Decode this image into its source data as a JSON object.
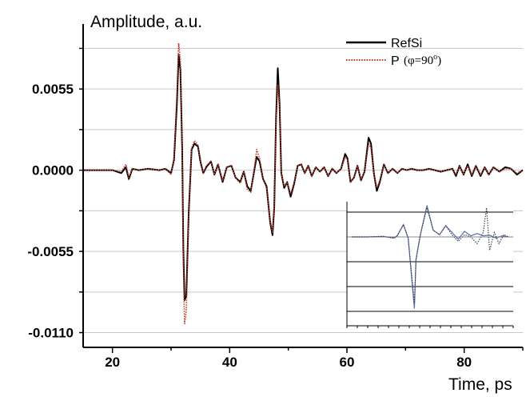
{
  "chart_data": {
    "type": "line",
    "title": "",
    "ylabel": "Amplitude, a.u.",
    "xlabel": "Time, ps",
    "xlim": [
      15,
      90
    ],
    "ylim": [
      -0.012,
      0.0099
    ],
    "x_ticks": [
      20,
      40,
      60,
      80
    ],
    "x_tick_labels": [
      "20",
      "40",
      "60",
      "80"
    ],
    "y_ticks": [
      -0.011,
      -0.0055,
      0.0,
      0.0055
    ],
    "y_tick_labels": [
      "-0.0110",
      "-0.0055",
      "0.0000",
      "0.0055"
    ],
    "grid": true,
    "legend_position": "top-right",
    "series": [
      {
        "name": "RefSi",
        "color": "#000000",
        "style": "solid",
        "points": [
          [
            15,
            0
          ],
          [
            18,
            0
          ],
          [
            20,
            0
          ],
          [
            21.5,
            -0.0002
          ],
          [
            22.3,
            0.0002
          ],
          [
            22.8,
            -0.0006
          ],
          [
            23.4,
            0.0001
          ],
          [
            24.5,
            0
          ],
          [
            26,
            0.0001
          ],
          [
            28,
            0
          ],
          [
            29,
            0.0001
          ],
          [
            30,
            -0.0002
          ],
          [
            30.5,
            0.0007
          ],
          [
            31,
            0.0045
          ],
          [
            31.3,
            0.0078
          ],
          [
            31.6,
            0.0068
          ],
          [
            31.9,
            0.0015
          ],
          [
            32.1,
            -0.0055
          ],
          [
            32.3,
            -0.0088
          ],
          [
            32.6,
            -0.0085
          ],
          [
            33,
            -0.003
          ],
          [
            33.5,
            0.0014
          ],
          [
            34,
            0.0018
          ],
          [
            34.6,
            0.0016
          ],
          [
            35,
            0.0006
          ],
          [
            35.5,
            -0.0002
          ],
          [
            36,
            0.0002
          ],
          [
            36.8,
            0.0006
          ],
          [
            37.4,
            -0.0003
          ],
          [
            38,
            0.0004
          ],
          [
            38.8,
            -0.0008
          ],
          [
            39.5,
            0.0002
          ],
          [
            40.3,
            0.0003
          ],
          [
            41,
            -0.0005
          ],
          [
            41.8,
            -0.0008
          ],
          [
            42.4,
            -0.0001
          ],
          [
            43,
            -0.0011
          ],
          [
            43.6,
            -0.0014
          ],
          [
            44.2,
            0.0
          ],
          [
            44.6,
            0.0009
          ],
          [
            45.1,
            0.0006
          ],
          [
            45.7,
            -0.0006
          ],
          [
            46.3,
            -0.0011
          ],
          [
            46.9,
            -0.0035
          ],
          [
            47.3,
            -0.0044
          ],
          [
            47.6,
            -0.0025
          ],
          [
            47.9,
            0.0035
          ],
          [
            48.2,
            0.0069
          ],
          [
            48.5,
            0.0045
          ],
          [
            48.8,
            -0.0002
          ],
          [
            49.3,
            -0.0012
          ],
          [
            49.8,
            -0.0008
          ],
          [
            50.4,
            -0.0018
          ],
          [
            51,
            -0.0009
          ],
          [
            51.6,
            0.0003
          ],
          [
            52.2,
            0.0004
          ],
          [
            52.8,
            -0.0002
          ],
          [
            53.4,
            0.0003
          ],
          [
            54,
            -0.0004
          ],
          [
            54.7,
            0.0002
          ],
          [
            55.4,
            -0.0001
          ],
          [
            56.1,
            0.0002
          ],
          [
            56.8,
            -0.0004
          ],
          [
            57.5,
            0.0001
          ],
          [
            58.2,
            -0.0002
          ],
          [
            59,
            0.0001
          ],
          [
            59.7,
            0.0011
          ],
          [
            60.1,
            0.0008
          ],
          [
            60.6,
            -0.0008
          ],
          [
            61.2,
            -0.0005
          ],
          [
            61.8,
            0.0003
          ],
          [
            62.4,
            -0.0007
          ],
          [
            63,
            -0.0001
          ],
          [
            63.7,
            0.0022
          ],
          [
            64.1,
            0.0018
          ],
          [
            64.6,
            -0.0002
          ],
          [
            65.1,
            -0.0014
          ],
          [
            65.6,
            -0.0008
          ],
          [
            66.3,
            0.0004
          ],
          [
            67,
            -0.0002
          ],
          [
            67.8,
            0.0001
          ],
          [
            68.6,
            -0.0002
          ],
          [
            69.4,
            0.0001
          ],
          [
            70.2,
            0.0
          ],
          [
            71,
            0.0001
          ],
          [
            72,
            0.0
          ],
          [
            73,
            0.0
          ],
          [
            74,
            0.0001
          ],
          [
            75,
            0.0
          ],
          [
            76,
            -0.0001
          ],
          [
            77,
            0.0
          ],
          [
            78,
            0.0001
          ],
          [
            78.6,
            -0.0004
          ],
          [
            79.2,
            0.0003
          ],
          [
            79.9,
            -0.0003
          ],
          [
            80.6,
            0.0004
          ],
          [
            81.3,
            -0.0004
          ],
          [
            82,
            0.0003
          ],
          [
            82.8,
            -0.0004
          ],
          [
            83.5,
            0.0002
          ],
          [
            84.2,
            -0.0003
          ],
          [
            85,
            0.0002
          ],
          [
            86,
            -0.0001
          ],
          [
            87,
            0.0002
          ],
          [
            88,
            0.0001
          ],
          [
            89,
            -0.0003
          ],
          [
            90,
            0.0
          ]
        ]
      },
      {
        "name": "P (φ=90°)",
        "color": "#c0392b",
        "style": "dotted",
        "points": [
          [
            15,
            0
          ],
          [
            18,
            0
          ],
          [
            20,
            0
          ],
          [
            21.5,
            -0.0001
          ],
          [
            22.3,
            0.0004
          ],
          [
            22.8,
            -0.0005
          ],
          [
            23.4,
            0.0001
          ],
          [
            24.5,
            0
          ],
          [
            26,
            0.0001
          ],
          [
            28,
            0
          ],
          [
            29,
            0.0001
          ],
          [
            30,
            -0.0003
          ],
          [
            30.5,
            0.0008
          ],
          [
            31,
            0.0052
          ],
          [
            31.3,
            0.0086
          ],
          [
            31.6,
            0.0075
          ],
          [
            31.9,
            0.0017
          ],
          [
            32.1,
            -0.0065
          ],
          [
            32.3,
            -0.0104
          ],
          [
            32.6,
            -0.0095
          ],
          [
            33,
            -0.0034
          ],
          [
            33.5,
            0.0015
          ],
          [
            34,
            0.002
          ],
          [
            34.6,
            0.0017
          ],
          [
            35,
            0.0007
          ],
          [
            35.5,
            -0.0002
          ],
          [
            36,
            0.0003
          ],
          [
            36.8,
            0.0006
          ],
          [
            37.4,
            -0.0003
          ],
          [
            38,
            0.0004
          ],
          [
            38.8,
            -0.0007
          ],
          [
            39.5,
            0.0002
          ],
          [
            40.3,
            0.0003
          ],
          [
            41,
            -0.0005
          ],
          [
            41.8,
            -0.0009
          ],
          [
            42.4,
            -0.0001
          ],
          [
            43,
            -0.0013
          ],
          [
            43.6,
            -0.0015
          ],
          [
            44.2,
            0.0001
          ],
          [
            44.6,
            0.0014
          ],
          [
            45.1,
            0.0008
          ],
          [
            45.7,
            -0.0006
          ],
          [
            46.3,
            -0.0012
          ],
          [
            46.9,
            -0.0034
          ],
          [
            47.3,
            -0.0042
          ],
          [
            47.6,
            -0.0024
          ],
          [
            47.9,
            0.0032
          ],
          [
            48.2,
            0.0058
          ],
          [
            48.5,
            0.0042
          ],
          [
            48.8,
            -0.0002
          ],
          [
            49.3,
            -0.0011
          ],
          [
            49.8,
            -0.0008
          ],
          [
            50.4,
            -0.0016
          ],
          [
            51,
            -0.0008
          ],
          [
            51.6,
            0.0003
          ],
          [
            52.2,
            0.0004
          ],
          [
            52.8,
            -0.0002
          ],
          [
            53.4,
            0.0003
          ],
          [
            54,
            -0.0004
          ],
          [
            54.7,
            0.0002
          ],
          [
            55.4,
            -0.0001
          ],
          [
            56.1,
            0.0002
          ],
          [
            56.8,
            -0.0004
          ],
          [
            57.5,
            0.0001
          ],
          [
            58.2,
            -0.0002
          ],
          [
            59,
            0.0001
          ],
          [
            59.7,
            0.0009
          ],
          [
            60.1,
            0.0007
          ],
          [
            60.6,
            -0.0008
          ],
          [
            61.2,
            -0.0005
          ],
          [
            61.8,
            0.0003
          ],
          [
            62.4,
            -0.0007
          ],
          [
            63,
            -0.0001
          ],
          [
            63.7,
            0.0018
          ],
          [
            64.1,
            0.0015
          ],
          [
            64.6,
            -0.0002
          ],
          [
            65.1,
            -0.0012
          ],
          [
            65.6,
            -0.0007
          ],
          [
            66.3,
            0.0004
          ],
          [
            67,
            -0.0002
          ],
          [
            67.8,
            0.0001
          ],
          [
            68.6,
            -0.0002
          ],
          [
            69.4,
            0.0001
          ],
          [
            70.2,
            0.0
          ],
          [
            71,
            0.0001
          ],
          [
            72,
            0.0
          ],
          [
            73,
            0.0
          ],
          [
            74,
            0.0001
          ],
          [
            75,
            0.0
          ],
          [
            76,
            -0.0001
          ],
          [
            77,
            0.0
          ],
          [
            78,
            0.0001
          ],
          [
            78.6,
            -0.0003
          ],
          [
            79.2,
            0.0003
          ],
          [
            79.9,
            -0.0003
          ],
          [
            80.6,
            0.0003
          ],
          [
            81.3,
            -0.0003
          ],
          [
            82,
            0.0003
          ],
          [
            82.8,
            -0.0003
          ],
          [
            83.5,
            0.0002
          ],
          [
            84.2,
            -0.0003
          ],
          [
            85,
            0.0002
          ],
          [
            86,
            -0.0001
          ],
          [
            87,
            0.0001
          ],
          [
            88,
            0.0001
          ],
          [
            89,
            -0.0002
          ],
          [
            90,
            0.0
          ]
        ]
      }
    ],
    "legend": {
      "items": [
        {
          "label": "RefSi",
          "color": "#000000",
          "style": "solid"
        },
        {
          "label": "P",
          "suffix": "(φ=90",
          "superscript": "o",
          "close": ")",
          "color": "#c0392b",
          "style": "dotted"
        }
      ]
    },
    "inset": {
      "series": [
        {
          "color": "#5a6fb0",
          "style": "solid",
          "points": [
            [
              0,
              0
            ],
            [
              10,
              0
            ],
            [
              20,
              0.02
            ],
            [
              27,
              -0.05
            ],
            [
              29,
              0.05
            ],
            [
              33,
              0.55
            ],
            [
              36,
              -0.05
            ],
            [
              40,
              -3.2
            ],
            [
              41,
              -1.0
            ],
            [
              44,
              0.15
            ],
            [
              48,
              1.4
            ],
            [
              52,
              0.3
            ],
            [
              56,
              0.1
            ],
            [
              60,
              0.5
            ],
            [
              64,
              0.2
            ],
            [
              68,
              -0.1
            ],
            [
              72,
              0.25
            ],
            [
              76,
              0.05
            ],
            [
              80,
              0.15
            ],
            [
              84,
              0.05
            ],
            [
              88,
              0.08
            ],
            [
              92,
              -0.05
            ],
            [
              96,
              0.05
            ],
            [
              100,
              0
            ]
          ]
        },
        {
          "color": "#444444",
          "style": "dotted",
          "points": [
            [
              0,
              0
            ],
            [
              10,
              0
            ],
            [
              20,
              0.02
            ],
            [
              27,
              -0.05
            ],
            [
              29,
              0.05
            ],
            [
              33,
              0.55
            ],
            [
              36,
              -0.05
            ],
            [
              40,
              -3.0
            ],
            [
              41,
              -1.0
            ],
            [
              44,
              0.15
            ],
            [
              48,
              1.3
            ],
            [
              52,
              0.3
            ],
            [
              56,
              0.1
            ],
            [
              60,
              0.5
            ],
            [
              64,
              0.1
            ],
            [
              68,
              -0.2
            ],
            [
              72,
              0.1
            ],
            [
              76,
              0.0
            ],
            [
              80,
              -0.3
            ],
            [
              84,
              0.2
            ],
            [
              86,
              1.3
            ],
            [
              88,
              -0.6
            ],
            [
              91,
              0.2
            ],
            [
              94,
              -0.3
            ],
            [
              97,
              0.1
            ],
            [
              100,
              0
            ]
          ]
        }
      ]
    }
  }
}
